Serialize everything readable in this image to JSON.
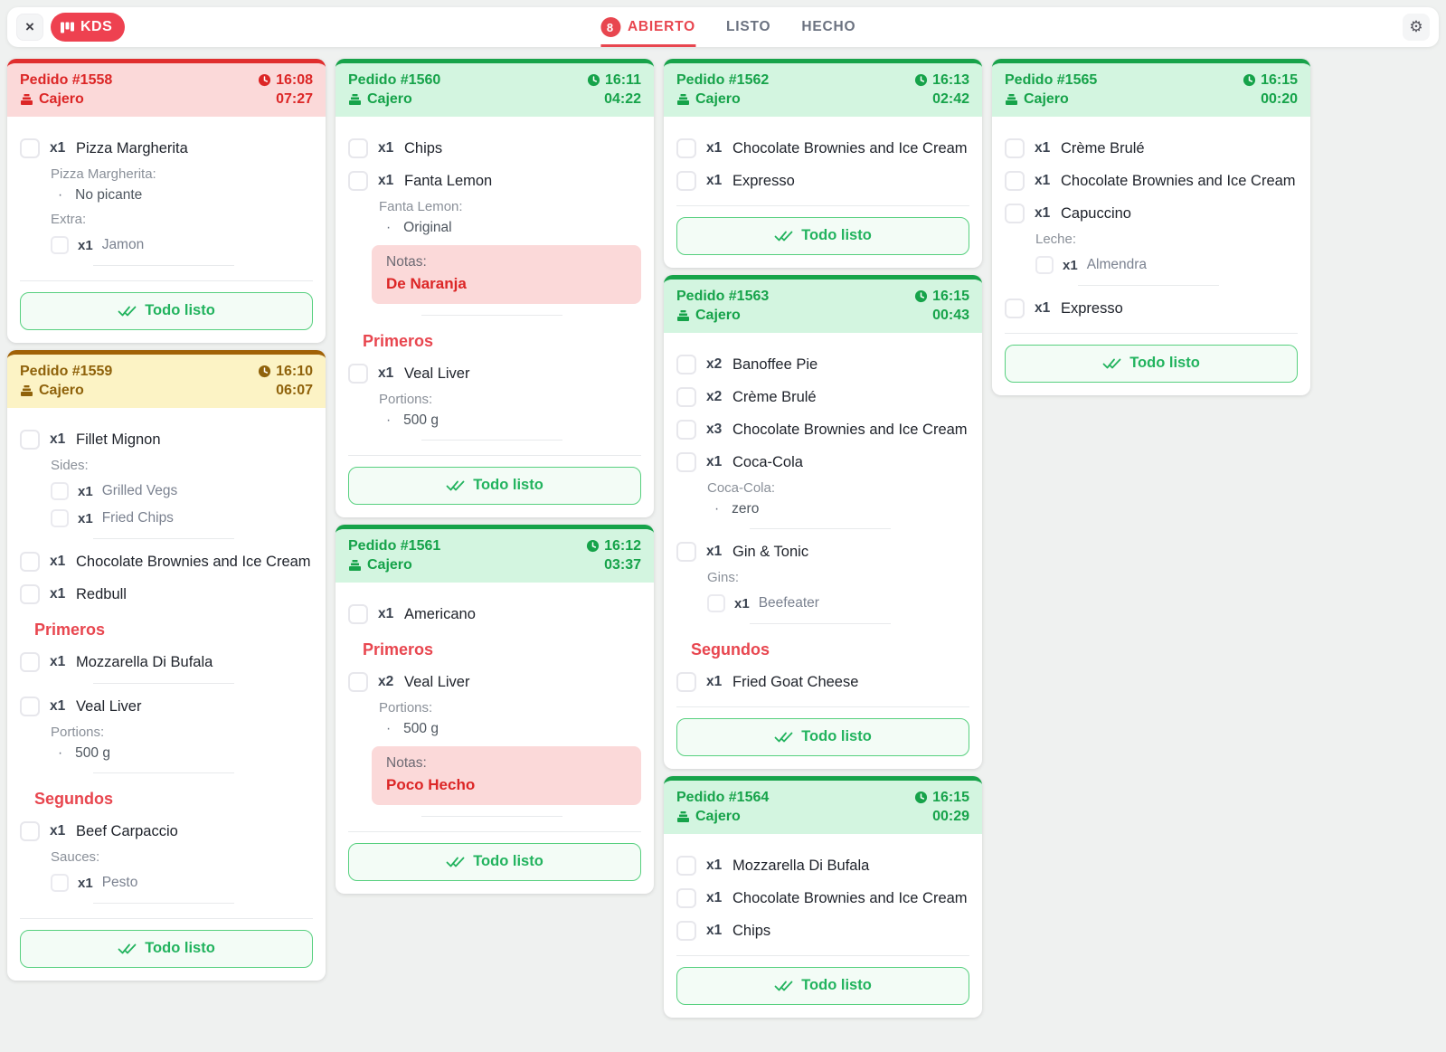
{
  "app": {
    "logo": "KDS"
  },
  "icons": {
    "close": "×",
    "gear": "⚙"
  },
  "tabs": [
    {
      "label": "ABIERTO",
      "badge": "8",
      "active": true
    },
    {
      "label": "LISTO",
      "active": false
    },
    {
      "label": "HECHO",
      "active": false
    }
  ],
  "ui": {
    "ready_button": "Todo listo",
    "note_label": "Notas:"
  },
  "colors": {
    "accent_red": "#e8464f",
    "status_red": {
      "border": "#e02e2e",
      "bg": "#fbd9d9",
      "text": "#dc2626"
    },
    "status_yellow": {
      "border": "#a16207",
      "bg": "#fcf3c5",
      "text": "#8f620b"
    },
    "status_green": {
      "border": "#17a34a",
      "bg": "#d3f5e0",
      "text": "#16a34a"
    },
    "ready_green": "#22b35e"
  },
  "columns": [
    [
      {
        "title": "Pedido #1558",
        "status": "red",
        "time": "16:08",
        "elapsed": "07:27",
        "station": "Cajero",
        "entries": [
          {
            "type": "item",
            "qty": "x1",
            "name": "Pizza Margherita",
            "details": [
              {
                "kind": "choices",
                "label": "Pizza Margherita:",
                "values": [
                  "No picante"
                ]
              },
              {
                "kind": "subitems",
                "label": "Extra:",
                "items": [
                  {
                    "qty": "x1",
                    "name": "Jamon"
                  }
                ]
              }
            ],
            "divider": true
          }
        ]
      },
      {
        "title": "Pedido #1559",
        "status": "yellow",
        "time": "16:10",
        "elapsed": "06:07",
        "station": "Cajero",
        "entries": [
          {
            "type": "item",
            "qty": "x1",
            "name": "Fillet Mignon",
            "details": [
              {
                "kind": "subitems",
                "label": "Sides:",
                "items": [
                  {
                    "qty": "x1",
                    "name": "Grilled Vegs"
                  },
                  {
                    "qty": "x1",
                    "name": "Fried Chips"
                  }
                ]
              }
            ],
            "divider": true
          },
          {
            "type": "item",
            "qty": "x1",
            "name": "Chocolate Brownies and Ice Cream"
          },
          {
            "type": "item",
            "qty": "x1",
            "name": "Redbull"
          },
          {
            "type": "section",
            "label": "Primeros"
          },
          {
            "type": "item",
            "qty": "x1",
            "name": "Mozzarella Di Bufala",
            "divider": true
          },
          {
            "type": "item",
            "qty": "x1",
            "name": "Veal Liver",
            "details": [
              {
                "kind": "choices",
                "label": "Portions:",
                "values": [
                  "500 g"
                ]
              }
            ],
            "divider": true
          },
          {
            "type": "section",
            "label": "Segundos"
          },
          {
            "type": "item",
            "qty": "x1",
            "name": "Beef Carpaccio",
            "details": [
              {
                "kind": "subitems",
                "label": "Sauces:",
                "items": [
                  {
                    "qty": "x1",
                    "name": "Pesto"
                  }
                ]
              }
            ],
            "divider": true
          }
        ]
      }
    ],
    [
      {
        "title": "Pedido #1560",
        "status": "green",
        "time": "16:11",
        "elapsed": "04:22",
        "station": "Cajero",
        "entries": [
          {
            "type": "item",
            "qty": "x1",
            "name": "Chips"
          },
          {
            "type": "item",
            "qty": "x1",
            "name": "Fanta Lemon",
            "details": [
              {
                "kind": "choices",
                "label": "Fanta Lemon:",
                "values": [
                  "Original"
                ]
              }
            ],
            "note": "De Naranja",
            "divider": true
          },
          {
            "type": "section",
            "label": "Primeros"
          },
          {
            "type": "item",
            "qty": "x1",
            "name": "Veal Liver",
            "details": [
              {
                "kind": "choices",
                "label": "Portions:",
                "values": [
                  "500 g"
                ]
              }
            ],
            "divider": true
          }
        ]
      },
      {
        "title": "Pedido #1561",
        "status": "green",
        "time": "16:12",
        "elapsed": "03:37",
        "station": "Cajero",
        "entries": [
          {
            "type": "item",
            "qty": "x1",
            "name": "Americano"
          },
          {
            "type": "section",
            "label": "Primeros"
          },
          {
            "type": "item",
            "qty": "x2",
            "name": "Veal Liver",
            "details": [
              {
                "kind": "choices",
                "label": "Portions:",
                "values": [
                  "500 g"
                ]
              }
            ],
            "note": "Poco Hecho",
            "divider": true
          }
        ]
      }
    ],
    [
      {
        "title": "Pedido #1562",
        "status": "green",
        "time": "16:13",
        "elapsed": "02:42",
        "station": "Cajero",
        "entries": [
          {
            "type": "item",
            "qty": "x1",
            "name": "Chocolate Brownies and Ice Cream"
          },
          {
            "type": "item",
            "qty": "x1",
            "name": "Expresso"
          }
        ]
      },
      {
        "title": "Pedido #1563",
        "status": "green",
        "time": "16:15",
        "elapsed": "00:43",
        "station": "Cajero",
        "entries": [
          {
            "type": "item",
            "qty": "x2",
            "name": "Banoffee Pie"
          },
          {
            "type": "item",
            "qty": "x2",
            "name": "Crème Brulé"
          },
          {
            "type": "item",
            "qty": "x3",
            "name": "Chocolate Brownies and Ice Cream"
          },
          {
            "type": "item",
            "qty": "x1",
            "name": "Coca-Cola",
            "details": [
              {
                "kind": "choices",
                "label": "Coca-Cola:",
                "values": [
                  "zero"
                ]
              }
            ],
            "divider": true
          },
          {
            "type": "item",
            "qty": "x1",
            "name": "Gin & Tonic",
            "details": [
              {
                "kind": "subitems",
                "label": "Gins:",
                "items": [
                  {
                    "qty": "x1",
                    "name": "Beefeater"
                  }
                ]
              }
            ],
            "divider": true
          },
          {
            "type": "section",
            "label": "Segundos"
          },
          {
            "type": "item",
            "qty": "x1",
            "name": "Fried Goat Cheese"
          }
        ]
      },
      {
        "title": "Pedido #1564",
        "status": "green",
        "time": "16:15",
        "elapsed": "00:29",
        "station": "Cajero",
        "entries": [
          {
            "type": "item",
            "qty": "x1",
            "name": "Mozzarella Di Bufala"
          },
          {
            "type": "item",
            "qty": "x1",
            "name": "Chocolate Brownies and Ice Cream"
          },
          {
            "type": "item",
            "qty": "x1",
            "name": "Chips"
          }
        ]
      }
    ],
    [
      {
        "title": "Pedido #1565",
        "status": "green",
        "time": "16:15",
        "elapsed": "00:20",
        "station": "Cajero",
        "entries": [
          {
            "type": "item",
            "qty": "x1",
            "name": "Crème Brulé"
          },
          {
            "type": "item",
            "qty": "x1",
            "name": "Chocolate Brownies and Ice Cream"
          },
          {
            "type": "item",
            "qty": "x1",
            "name": "Capuccino",
            "details": [
              {
                "kind": "subitems",
                "label": "Leche:",
                "items": [
                  {
                    "qty": "x1",
                    "name": "Almendra"
                  }
                ]
              }
            ],
            "divider": true
          },
          {
            "type": "item",
            "qty": "x1",
            "name": "Expresso"
          }
        ]
      }
    ]
  ]
}
